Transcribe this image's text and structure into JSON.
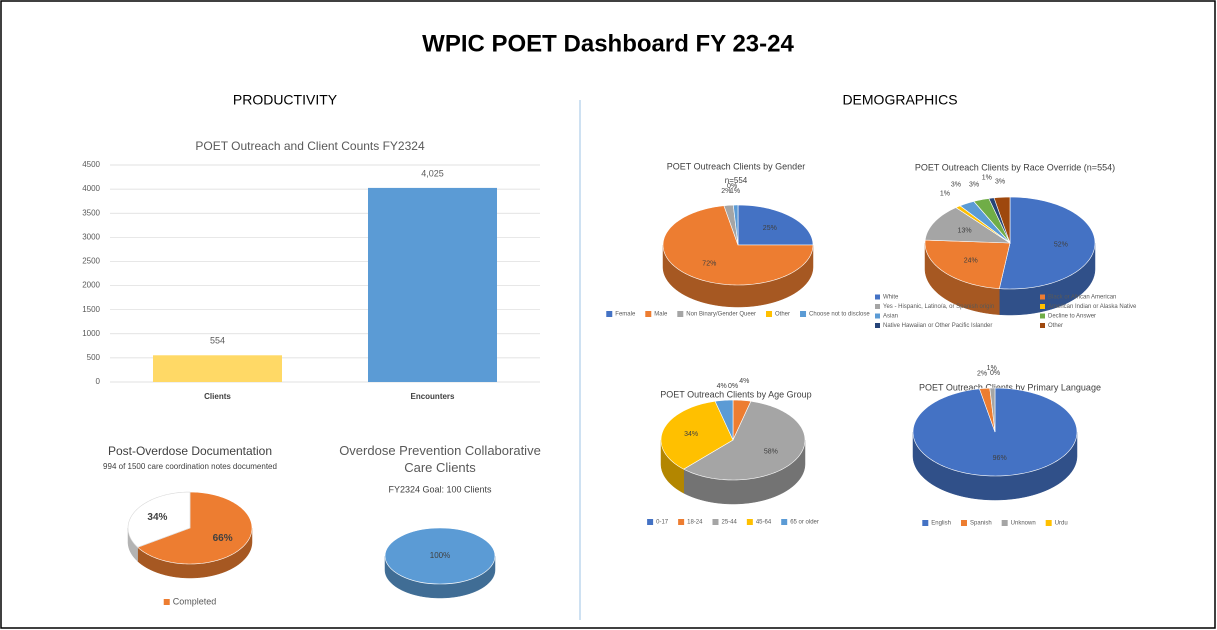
{
  "header": {
    "title": "WPIC POET Dashboard FY 23-24",
    "sections": [
      "PRODUCTIVITY",
      "DEMOGRAPHICS"
    ]
  },
  "chart_data": [
    {
      "type": "bar",
      "title": "POET Outreach and Client Counts FY2324",
      "categories": [
        "Clients",
        "Encounters"
      ],
      "values": [
        554,
        4025
      ],
      "value_labels": [
        "554",
        "4,025"
      ],
      "colors": [
        "#ffd966",
        "#5b9bd5"
      ],
      "ylim": [
        0,
        4500
      ],
      "yticks": [
        0,
        500,
        1000,
        1500,
        2000,
        2500,
        3000,
        3500,
        4000,
        4500
      ],
      "grid": true
    },
    {
      "type": "pie",
      "title": "Post-Overdose Documentation",
      "subtitle": "994 of 1500 care coordination notes documented",
      "categories": [
        "Completed",
        null
      ],
      "values": [
        66,
        34
      ],
      "value_labels": [
        "66%",
        "34%"
      ],
      "colors": [
        "#ed7d31",
        "#ffffff"
      ]
    },
    {
      "type": "pie",
      "title": "Overdose Prevention Collaborative Care Clients",
      "subtitle": "FY2324 Goal: 100 Clients",
      "values": [
        100
      ],
      "value_labels": [
        "100%"
      ],
      "colors": [
        "#5b9bd5"
      ]
    },
    {
      "type": "pie",
      "title": "POET Outreach Clients by Gender",
      "subtitle": "n=554",
      "categories": [
        "Female",
        "Male",
        "Non Binary/Gender Queer",
        "Other",
        "Choose not to disclose"
      ],
      "values": [
        25,
        72,
        2,
        0,
        1
      ],
      "value_labels": [
        "25%",
        "72%",
        "2%",
        "0%",
        "1%"
      ],
      "colors": [
        "#4472c4",
        "#ed7d31",
        "#a5a5a5",
        "#ffc000",
        "#5b9bd5"
      ]
    },
    {
      "type": "pie",
      "title": "POET Outreach Clients by Race Override (n=554)",
      "categories": [
        "White",
        "Black or African American",
        "Yes - Hispanic, Latino/a, or Spanish origin",
        "American Indian or Alaska Native",
        "Asian",
        "Decline to Answer",
        "Native Hawaiian or Other Pacific Islander",
        "Other"
      ],
      "values": [
        52,
        24,
        13,
        1,
        3,
        3,
        1,
        3
      ],
      "value_labels": [
        "52%",
        "24%",
        "13%",
        "1%",
        "3%",
        "3%",
        "1%",
        "3%"
      ],
      "colors": [
        "#4472c4",
        "#ed7d31",
        "#a5a5a5",
        "#ffc000",
        "#5b9bd5",
        "#70ad47",
        "#264478",
        "#9e480e"
      ]
    },
    {
      "type": "pie",
      "title": "POET Outreach Clients by Age Group",
      "categories": [
        "0-17",
        "18-24",
        "25-44",
        "45-64",
        "65 or older"
      ],
      "values": [
        0,
        4,
        58,
        34,
        4
      ],
      "value_labels": [
        "0%",
        "4%",
        "58%",
        "34%",
        "4%"
      ],
      "colors": [
        "#4472c4",
        "#ed7d31",
        "#a5a5a5",
        "#ffc000",
        "#5b9bd5"
      ]
    },
    {
      "type": "pie",
      "title": "POET Outreach Clients by Primary Language",
      "categories": [
        "English",
        "Spanish",
        "Unknown",
        "Urdu"
      ],
      "values": [
        96,
        2,
        1,
        0
      ],
      "value_labels": [
        "96%",
        "2%",
        "1%",
        "0%"
      ],
      "colors": [
        "#4472c4",
        "#ed7d31",
        "#a5a5a5",
        "#ffc000"
      ]
    }
  ]
}
